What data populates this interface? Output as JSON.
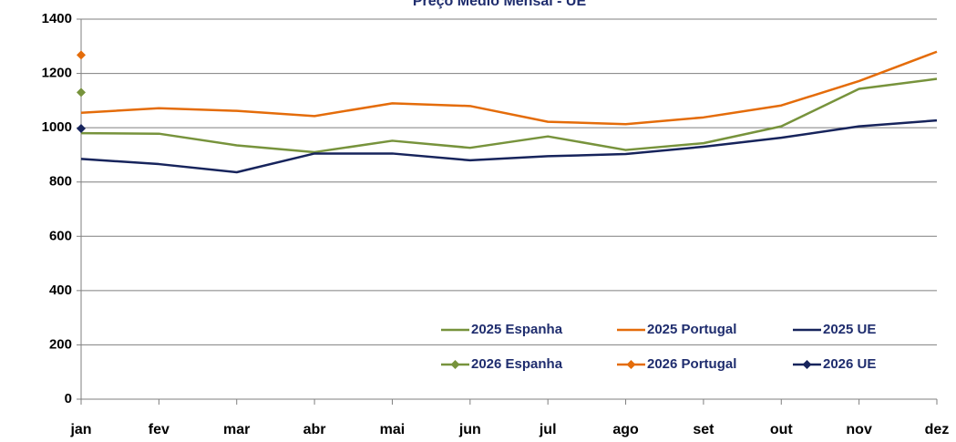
{
  "chart_data": {
    "type": "line",
    "title": "Preço Médio Mensal - UE",
    "categories": [
      "jan",
      "fev",
      "mar",
      "abr",
      "mai",
      "jun",
      "jul",
      "ago",
      "set",
      "out",
      "nov",
      "dez"
    ],
    "ylim": [
      0,
      1400
    ],
    "yticks": [
      0,
      200,
      400,
      600,
      800,
      1000,
      1200,
      1400
    ],
    "grid": true,
    "legend": "lower right",
    "series": [
      {
        "name": "2025 Espanha",
        "color": "#77933c",
        "values": [
          980,
          978,
          935,
          910,
          952,
          926,
          968,
          918,
          943,
          1005,
          1143,
          1180
        ]
      },
      {
        "name": "2025 Portugal",
        "color": "#e46c0a",
        "values": [
          1055,
          1072,
          1062,
          1043,
          1090,
          1080,
          1022,
          1013,
          1038,
          1082,
          1172,
          1280
        ]
      },
      {
        "name": "2025 UE",
        "color": "#17245c",
        "values": [
          885,
          866,
          836,
          905,
          905,
          880,
          895,
          903,
          930,
          963,
          1005,
          1027
        ]
      },
      {
        "name": "2026 Espanha",
        "color": "#77933c",
        "marker": "diamond",
        "values": [
          1130,
          null,
          null,
          null,
          null,
          null,
          null,
          null,
          null,
          null,
          null,
          null
        ]
      },
      {
        "name": "2026 Portugal",
        "color": "#e46c0a",
        "marker": "diamond",
        "values": [
          1268,
          null,
          null,
          null,
          null,
          null,
          null,
          null,
          null,
          null,
          null,
          null
        ]
      },
      {
        "name": "2026 UE",
        "color": "#17245c",
        "marker": "diamond",
        "values": [
          997,
          null,
          null,
          null,
          null,
          null,
          null,
          null,
          null,
          null,
          null,
          null
        ]
      }
    ]
  }
}
